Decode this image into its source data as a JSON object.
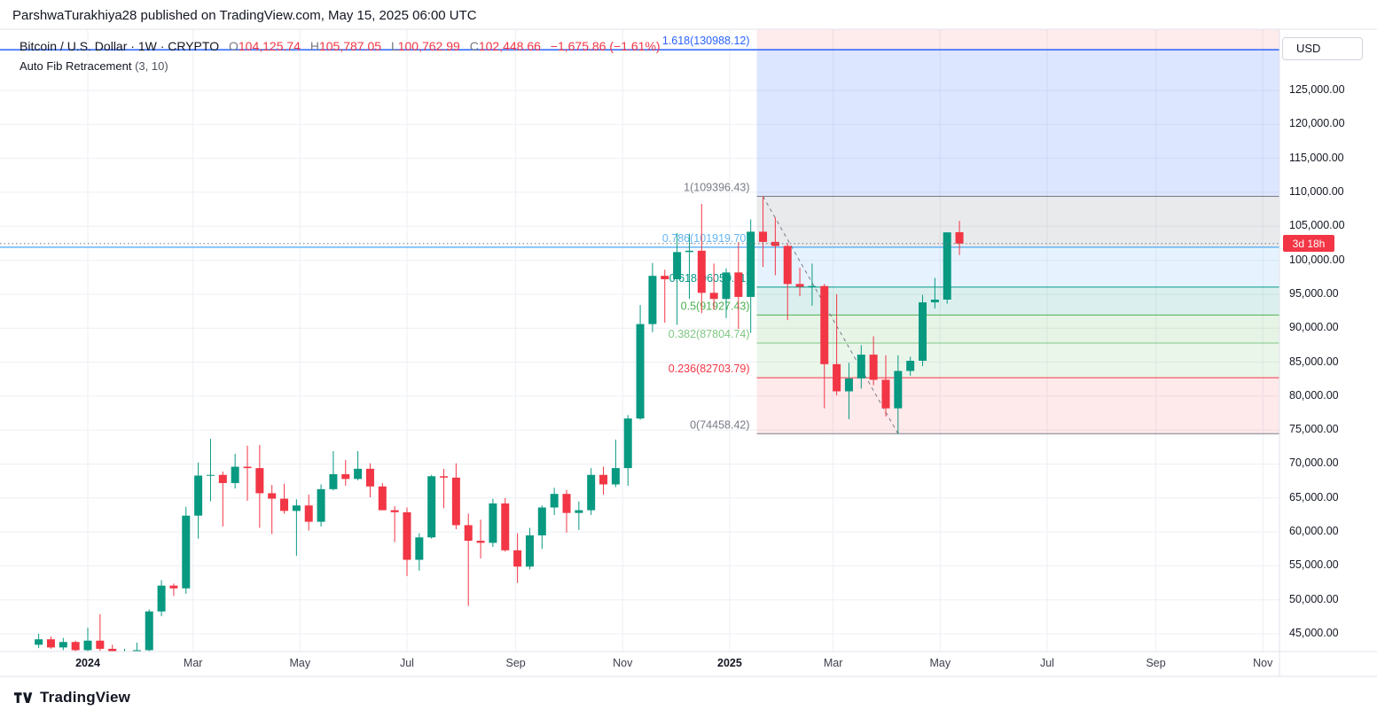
{
  "header": {
    "published_line": "ParshwaTurakhiya28 published on TradingView.com, May 15, 2025 06:00 UTC"
  },
  "legend": {
    "symbol_title": "Bitcoin / U.S. Dollar · 1W · CRYPTO",
    "ohlc": {
      "o_label": "O",
      "o": "104,125.74",
      "h_label": "H",
      "h": "105,787.05",
      "l_label": "L",
      "l": "100,762.99",
      "c_label": "C",
      "c": "102,448.66",
      "change": "−1,675.86 (−1.61%)"
    },
    "indicator": "Auto Fib Retracement",
    "indicator_args": "(3, 10)"
  },
  "price_axis": {
    "currency_button": "USD",
    "countdown_badge": "3d 18h",
    "badge_color": "#f23645",
    "labels": [
      "125,000.00",
      "120,000.00",
      "115,000.00",
      "110,000.00",
      "105,000.00",
      "100,000.00",
      "95,000.00",
      "90,000.00",
      "85,000.00",
      "80,000.00",
      "75,000.00",
      "70,000.00",
      "65,000.00",
      "60,000.00",
      "55,000.00",
      "50,000.00",
      "45,000.00"
    ]
  },
  "time_axis": {
    "labels": [
      {
        "text": "2024",
        "date": "2024-01-01",
        "major": true
      },
      {
        "text": "Mar",
        "date": "2024-03-01",
        "major": false
      },
      {
        "text": "May",
        "date": "2024-05-01",
        "major": false
      },
      {
        "text": "Jul",
        "date": "2024-07-01",
        "major": false
      },
      {
        "text": "Sep",
        "date": "2024-09-01",
        "major": false
      },
      {
        "text": "Nov",
        "date": "2024-11-01",
        "major": false
      },
      {
        "text": "2025",
        "date": "2025-01-01",
        "major": true
      },
      {
        "text": "Mar",
        "date": "2025-03-01",
        "major": false
      },
      {
        "text": "May",
        "date": "2025-05-01",
        "major": false
      },
      {
        "text": "Jul",
        "date": "2025-07-01",
        "major": false
      },
      {
        "text": "Sep",
        "date": "2025-09-01",
        "major": false
      },
      {
        "text": "Nov",
        "date": "2025-11-01",
        "major": false
      }
    ]
  },
  "footer": {
    "brand": "TradingView"
  },
  "chart_data": {
    "type": "candlestick",
    "title": "Bitcoin / U.S. Dollar",
    "interval": "1W",
    "exchange": "CRYPTO",
    "price_axis_range": [
      42400,
      134000
    ],
    "up_color": "#089981",
    "down_color": "#f23645",
    "last_price": 102448.66,
    "current_ohlc": {
      "open": 104125.74,
      "high": 105787.05,
      "low": 100762.99,
      "close": 102448.66,
      "change": -1675.86,
      "change_pct": -1.61
    },
    "candles": [
      [
        "2023-12-04",
        43400,
        45000,
        42900,
        44200
      ],
      [
        "2023-12-11",
        44200,
        44600,
        42800,
        43000
      ],
      [
        "2023-12-18",
        43000,
        44400,
        42600,
        43800
      ],
      [
        "2023-12-25",
        43800,
        44000,
        42200,
        42600
      ],
      [
        "2024-01-01",
        42600,
        45900,
        42000,
        44000
      ],
      [
        "2024-01-08",
        44000,
        47900,
        42500,
        42800
      ],
      [
        "2024-01-15",
        42800,
        43400,
        40300,
        41600
      ],
      [
        "2024-01-22",
        41600,
        42800,
        38500,
        42000
      ],
      [
        "2024-01-29",
        42000,
        43700,
        41900,
        42600
      ],
      [
        "2024-02-05",
        42600,
        48600,
        42200,
        48300
      ],
      [
        "2024-02-12",
        48300,
        52900,
        47600,
        52100
      ],
      [
        "2024-02-19",
        52100,
        52400,
        50600,
        51700
      ],
      [
        "2024-02-26",
        51700,
        63700,
        50900,
        62400
      ],
      [
        "2024-03-04",
        62400,
        70200,
        59000,
        68300
      ],
      [
        "2024-03-11",
        68300,
        73700,
        64500,
        68400
      ],
      [
        "2024-03-18",
        68400,
        68900,
        60800,
        67200
      ],
      [
        "2024-03-25",
        67200,
        71500,
        66400,
        69600
      ],
      [
        "2024-04-01",
        69600,
        72700,
        64600,
        69400
      ],
      [
        "2024-04-08",
        69400,
        72800,
        60600,
        65700
      ],
      [
        "2024-04-15",
        65700,
        66900,
        59700,
        64900
      ],
      [
        "2024-04-22",
        64900,
        67100,
        62700,
        63100
      ],
      [
        "2024-04-29",
        63100,
        64800,
        56500,
        63900
      ],
      [
        "2024-05-06",
        63900,
        65500,
        60200,
        61500
      ],
      [
        "2024-05-13",
        61500,
        67000,
        60800,
        66300
      ],
      [
        "2024-05-20",
        66300,
        71900,
        66100,
        68500
      ],
      [
        "2024-05-27",
        68500,
        70600,
        66800,
        67800
      ],
      [
        "2024-06-03",
        67800,
        71900,
        67600,
        69300
      ],
      [
        "2024-06-10",
        69300,
        70100,
        65100,
        66700
      ],
      [
        "2024-06-17",
        66700,
        67200,
        63400,
        63200
      ],
      [
        "2024-06-24",
        63200,
        63800,
        58500,
        62900
      ],
      [
        "2024-07-01",
        62900,
        63600,
        53500,
        55900
      ],
      [
        "2024-07-08",
        55900,
        59800,
        54300,
        59200
      ],
      [
        "2024-07-15",
        59200,
        68400,
        59000,
        68200
      ],
      [
        "2024-07-22",
        68200,
        69300,
        63500,
        68000
      ],
      [
        "2024-07-29",
        68000,
        70100,
        60400,
        61000
      ],
      [
        "2024-08-05",
        61000,
        62700,
        49100,
        58700
      ],
      [
        "2024-08-12",
        58700,
        61800,
        56100,
        58400
      ],
      [
        "2024-08-19",
        58400,
        64900,
        57800,
        64200
      ],
      [
        "2024-08-26",
        64200,
        65000,
        57100,
        57300
      ],
      [
        "2024-09-02",
        57300,
        59800,
        52500,
        54900
      ],
      [
        "2024-09-09",
        54900,
        60600,
        54500,
        59500
      ],
      [
        "2024-09-16",
        59500,
        63900,
        57500,
        63600
      ],
      [
        "2024-09-23",
        63600,
        66500,
        62500,
        65600
      ],
      [
        "2024-09-30",
        65600,
        66200,
        59900,
        62800
      ],
      [
        "2024-10-07",
        62800,
        64500,
        60300,
        63200
      ],
      [
        "2024-10-14",
        63200,
        69400,
        62500,
        68400
      ],
      [
        "2024-10-21",
        68400,
        69600,
        65500,
        67000
      ],
      [
        "2024-10-28",
        67000,
        73600,
        66600,
        69400
      ],
      [
        "2024-11-04",
        69400,
        77200,
        66800,
        76700
      ],
      [
        "2024-11-11",
        76700,
        93400,
        76500,
        90600
      ],
      [
        "2024-11-18",
        90600,
        99600,
        89400,
        97700
      ],
      [
        "2024-11-25",
        97700,
        98600,
        90800,
        97200
      ],
      [
        "2024-12-02",
        97200,
        104000,
        90500,
        101200
      ],
      [
        "2024-12-09",
        101200,
        103900,
        94300,
        101400
      ],
      [
        "2024-12-16",
        101400,
        108300,
        92200,
        95200
      ],
      [
        "2024-12-23",
        95200,
        99500,
        92700,
        94300
      ],
      [
        "2024-12-30",
        94300,
        98800,
        91500,
        98200
      ],
      [
        "2025-01-06",
        98200,
        102700,
        89900,
        94600
      ],
      [
        "2025-01-13",
        94600,
        106000,
        89300,
        104200
      ],
      [
        "2025-01-20",
        104200,
        109396,
        99000,
        102700
      ],
      [
        "2025-01-27",
        102700,
        106300,
        97800,
        102100
      ],
      [
        "2025-02-03",
        102100,
        102500,
        91200,
        96500
      ],
      [
        "2025-02-10",
        96500,
        98900,
        94700,
        96100
      ],
      [
        "2025-02-17",
        96100,
        99500,
        93300,
        96200
      ],
      [
        "2025-02-24",
        96200,
        96500,
        78200,
        84700
      ],
      [
        "2025-03-03",
        84700,
        95000,
        80100,
        80700
      ],
      [
        "2025-03-10",
        80700,
        84900,
        76600,
        82600
      ],
      [
        "2025-03-17",
        82600,
        87500,
        81100,
        86100
      ],
      [
        "2025-03-24",
        86100,
        88800,
        81600,
        82400
      ],
      [
        "2025-03-31",
        82400,
        86000,
        77000,
        78200
      ],
      [
        "2025-04-07",
        78200,
        86000,
        74458,
        83700
      ],
      [
        "2025-04-14",
        83700,
        85800,
        83000,
        85200
      ],
      [
        "2025-04-21",
        85200,
        94900,
        84400,
        93800
      ],
      [
        "2025-04-28",
        93800,
        97400,
        92900,
        94200
      ],
      [
        "2025-05-05",
        94200,
        104100,
        93600,
        104100
      ],
      [
        "2025-05-12",
        104125.74,
        105787.05,
        100762.99,
        102448.66
      ]
    ],
    "fib": {
      "name": "Auto Fib Retracement",
      "args": [
        3,
        10
      ],
      "x_start_date": "2025-01-20",
      "trendline": {
        "from": {
          "date": "2025-01-20",
          "price": 109396.43
        },
        "to": {
          "date": "2025-04-07",
          "price": 74458.42
        }
      },
      "levels": [
        {
          "ratio": 1.618,
          "price": 130988.12,
          "label": "1.618(130988.12)",
          "color": "#2962ff",
          "extend_left": true
        },
        {
          "ratio": 1,
          "price": 109396.43,
          "label": "1(109396.43)",
          "color": "#787b86",
          "extend_left": false
        },
        {
          "ratio": 0.786,
          "price": 101919.7,
          "label": "0.786(101919.70)",
          "color": "#64b5f6",
          "extend_left": true
        },
        {
          "ratio": 0.618,
          "price": 96050.11,
          "label": "0.618(96050.11)",
          "color": "#009688",
          "extend_left": false
        },
        {
          "ratio": 0.5,
          "price": 91927.43,
          "label": "0.5(91927.43)",
          "color": "#4caf50",
          "extend_left": false
        },
        {
          "ratio": 0.382,
          "price": 87804.74,
          "label": "0.382(87804.74)",
          "color": "#81c784",
          "extend_left": false
        },
        {
          "ratio": 0.236,
          "price": 82703.79,
          "label": "0.236(82703.79)",
          "color": "#f23645",
          "extend_left": false
        },
        {
          "ratio": 0,
          "price": 74458.42,
          "label": "0(74458.42)",
          "color": "#787b86",
          "extend_left": false
        }
      ],
      "bands": [
        {
          "from_price": 140000,
          "to_price": 130988.12,
          "fill": "rgba(242,54,69,0.10)"
        },
        {
          "from_price": 130988.12,
          "to_price": 109396.43,
          "fill": "rgba(41,98,255,0.16)"
        },
        {
          "from_price": 109396.43,
          "to_price": 101919.7,
          "fill": "rgba(120,123,134,0.16)"
        },
        {
          "from_price": 101919.7,
          "to_price": 96050.11,
          "fill": "rgba(100,181,246,0.16)"
        },
        {
          "from_price": 96050.11,
          "to_price": 91927.43,
          "fill": "rgba(0,150,136,0.14)"
        },
        {
          "from_price": 91927.43,
          "to_price": 87804.74,
          "fill": "rgba(76,175,80,0.14)"
        },
        {
          "from_price": 87804.74,
          "to_price": 82703.79,
          "fill": "rgba(129,199,132,0.16)"
        },
        {
          "from_price": 82703.79,
          "to_price": 74458.42,
          "fill": "rgba(242,54,69,0.11)"
        }
      ]
    }
  }
}
